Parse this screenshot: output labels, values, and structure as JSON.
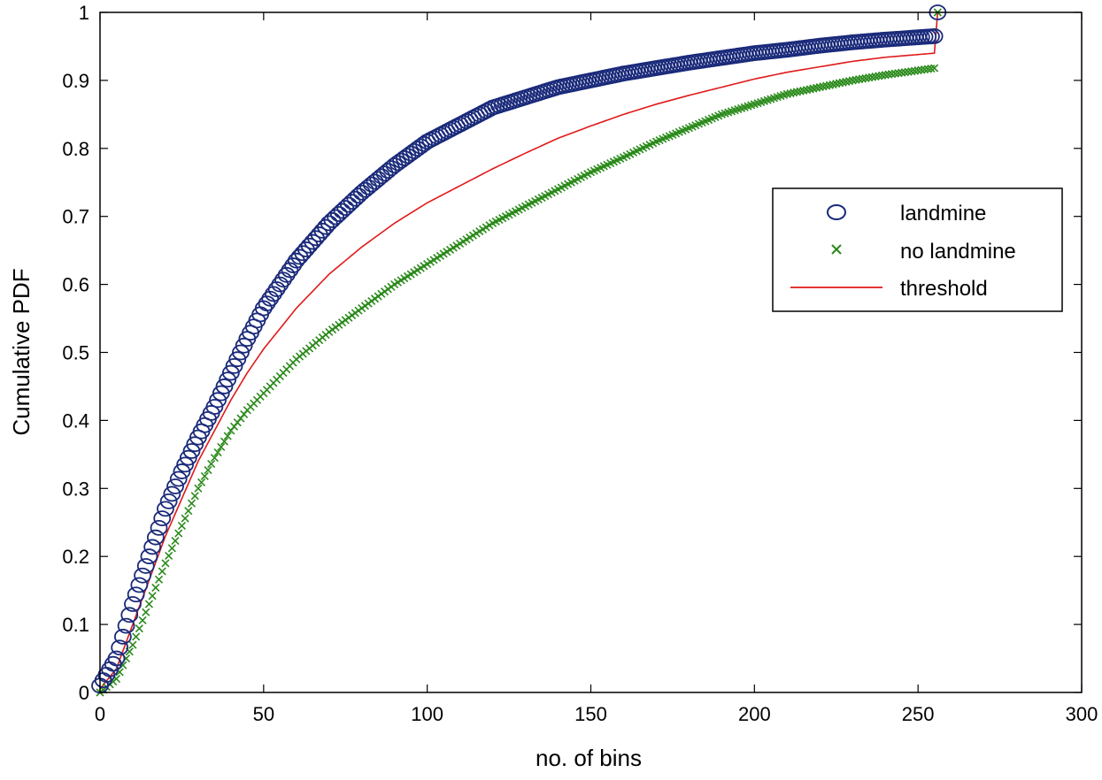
{
  "chart_data": {
    "type": "line",
    "title": "",
    "xlabel": "no. of bins",
    "ylabel": "Cumulative PDF",
    "xlim": [
      0,
      300
    ],
    "ylim": [
      0,
      1
    ],
    "xticks": [
      0,
      50,
      100,
      150,
      200,
      250,
      300
    ],
    "yticks": [
      0,
      0.1,
      0.2,
      0.3,
      0.4,
      0.5,
      0.6,
      0.7,
      0.8,
      0.9,
      1
    ],
    "xtick_labels": [
      "0",
      "50",
      "100",
      "150",
      "200",
      "250",
      "300"
    ],
    "ytick_labels": [
      "0",
      "0.1",
      "0.2",
      "0.3",
      "0.4",
      "0.5",
      "0.6",
      "0.7",
      "0.8",
      "0.9",
      "1"
    ],
    "grid": false,
    "legend_position": "right-upper",
    "series": [
      {
        "name": "landmine",
        "marker": "circle",
        "color": "#1a2a7a",
        "anchors": [
          [
            0,
            0.01
          ],
          [
            5,
            0.05
          ],
          [
            10,
            0.13
          ],
          [
            15,
            0.2
          ],
          [
            20,
            0.27
          ],
          [
            25,
            0.325
          ],
          [
            30,
            0.375
          ],
          [
            35,
            0.42
          ],
          [
            40,
            0.47
          ],
          [
            45,
            0.52
          ],
          [
            50,
            0.565
          ],
          [
            60,
            0.635
          ],
          [
            70,
            0.69
          ],
          [
            80,
            0.735
          ],
          [
            90,
            0.775
          ],
          [
            100,
            0.81
          ],
          [
            110,
            0.835
          ],
          [
            120,
            0.86
          ],
          [
            130,
            0.875
          ],
          [
            140,
            0.89
          ],
          [
            150,
            0.9
          ],
          [
            160,
            0.91
          ],
          [
            170,
            0.918
          ],
          [
            180,
            0.926
          ],
          [
            190,
            0.933
          ],
          [
            200,
            0.94
          ],
          [
            210,
            0.945
          ],
          [
            220,
            0.951
          ],
          [
            230,
            0.956
          ],
          [
            240,
            0.96
          ],
          [
            255,
            0.965
          ]
        ],
        "final_point": [
          256,
          1.0
        ]
      },
      {
        "name": "no landmine",
        "marker": "x",
        "color": "#2a8a1a",
        "anchors": [
          [
            0,
            0
          ],
          [
            5,
            0.02
          ],
          [
            10,
            0.07
          ],
          [
            15,
            0.13
          ],
          [
            20,
            0.19
          ],
          [
            25,
            0.245
          ],
          [
            30,
            0.3
          ],
          [
            35,
            0.345
          ],
          [
            40,
            0.385
          ],
          [
            45,
            0.415
          ],
          [
            50,
            0.44
          ],
          [
            60,
            0.49
          ],
          [
            70,
            0.53
          ],
          [
            80,
            0.565
          ],
          [
            90,
            0.6
          ],
          [
            100,
            0.63
          ],
          [
            110,
            0.66
          ],
          [
            120,
            0.69
          ],
          [
            130,
            0.715
          ],
          [
            140,
            0.74
          ],
          [
            150,
            0.765
          ],
          [
            160,
            0.787
          ],
          [
            170,
            0.81
          ],
          [
            180,
            0.83
          ],
          [
            190,
            0.85
          ],
          [
            200,
            0.865
          ],
          [
            210,
            0.88
          ],
          [
            220,
            0.89
          ],
          [
            230,
            0.9
          ],
          [
            240,
            0.908
          ],
          [
            255,
            0.918
          ]
        ],
        "final_point": [
          256,
          1.0
        ]
      },
      {
        "name": "threshold",
        "marker": "line",
        "color": "#e01a1a",
        "anchors": [
          [
            0,
            0.005
          ],
          [
            5,
            0.035
          ],
          [
            10,
            0.1
          ],
          [
            15,
            0.165
          ],
          [
            20,
            0.23
          ],
          [
            25,
            0.285
          ],
          [
            30,
            0.34
          ],
          [
            35,
            0.385
          ],
          [
            40,
            0.43
          ],
          [
            45,
            0.47
          ],
          [
            50,
            0.505
          ],
          [
            60,
            0.565
          ],
          [
            70,
            0.615
          ],
          [
            80,
            0.655
          ],
          [
            90,
            0.69
          ],
          [
            100,
            0.72
          ],
          [
            110,
            0.745
          ],
          [
            120,
            0.77
          ],
          [
            130,
            0.793
          ],
          [
            140,
            0.815
          ],
          [
            150,
            0.833
          ],
          [
            160,
            0.85
          ],
          [
            170,
            0.865
          ],
          [
            180,
            0.878
          ],
          [
            190,
            0.89
          ],
          [
            200,
            0.902
          ],
          [
            210,
            0.912
          ],
          [
            220,
            0.92
          ],
          [
            230,
            0.928
          ],
          [
            240,
            0.934
          ],
          [
            255,
            0.94
          ]
        ],
        "final_point": [
          256,
          1.0
        ]
      }
    ]
  }
}
